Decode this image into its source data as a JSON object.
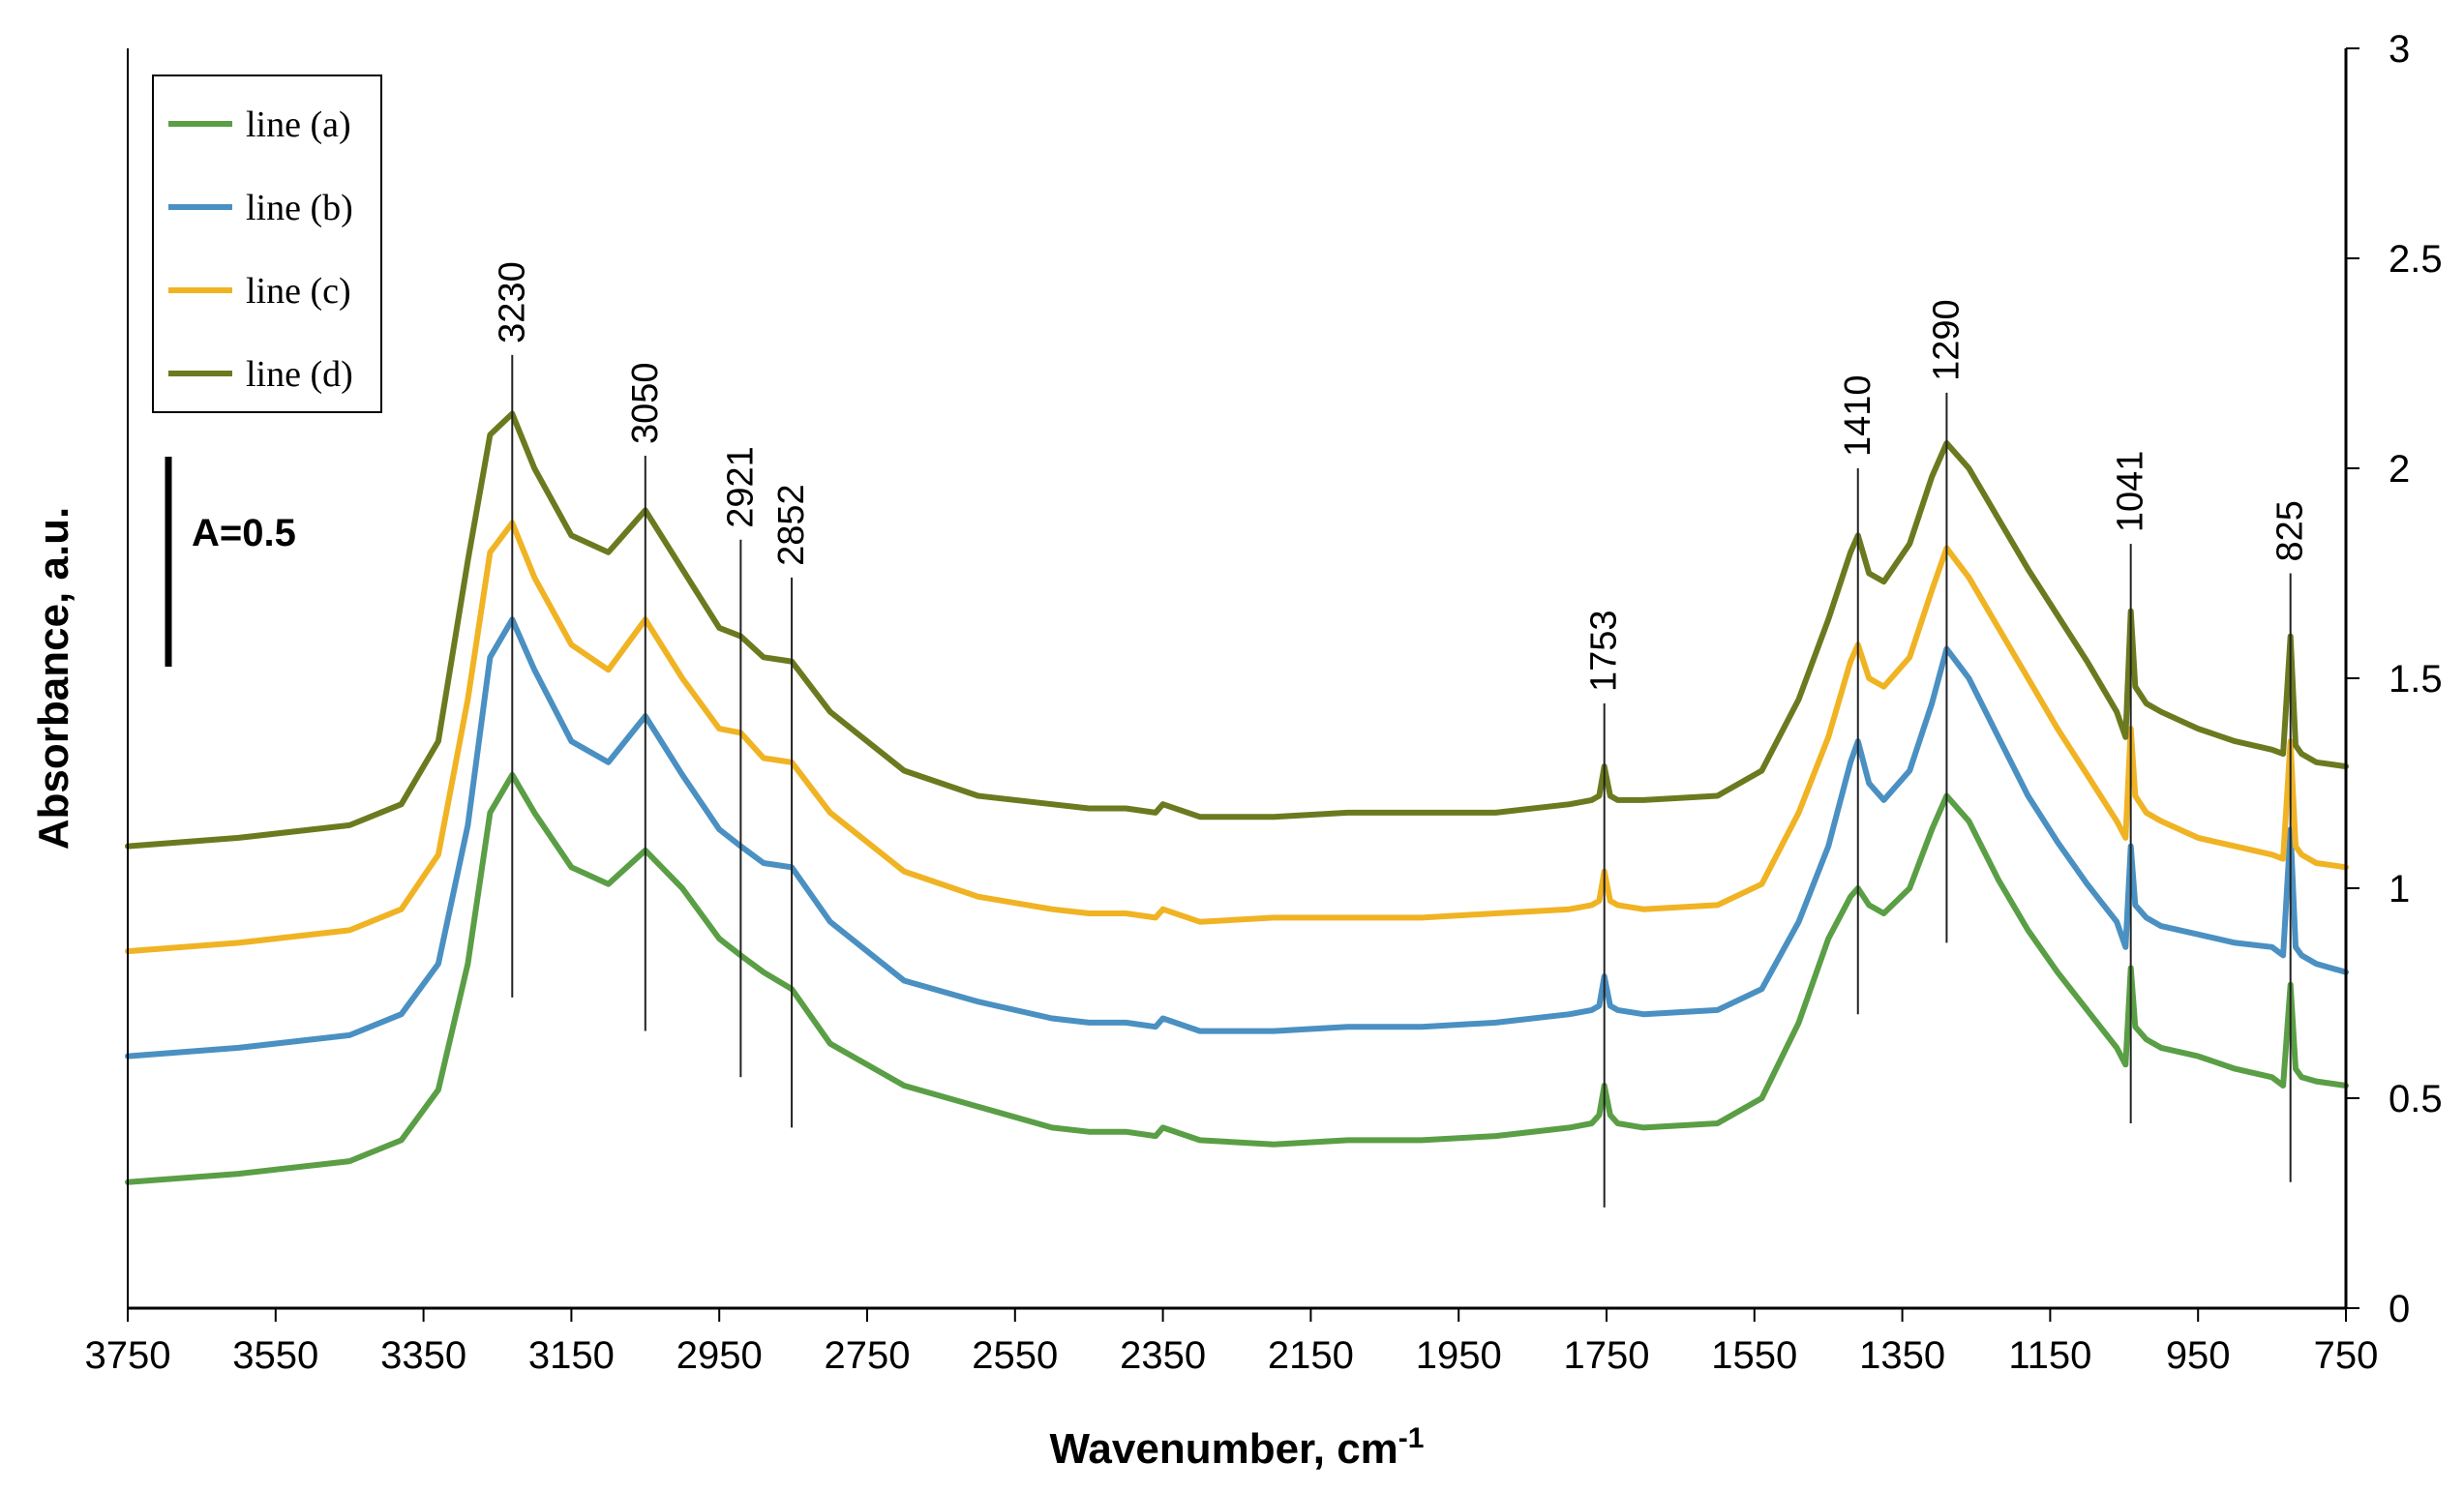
{
  "chart_data": {
    "type": "line",
    "title": "",
    "xlabel": "Wavenumber, cm",
    "xlabel_superscript": "-1",
    "ylabel": "Absorbance, a.u.",
    "xlim": [
      3750,
      750
    ],
    "ylim": [
      0,
      3
    ],
    "x_reversed": true,
    "x_ticks": [
      3750,
      3550,
      3350,
      3150,
      2950,
      2750,
      2550,
      2350,
      2150,
      1950,
      1750,
      1550,
      1350,
      1150,
      950,
      750
    ],
    "x_tick_labels": [
      "3750",
      "3550",
      "3350",
      "3150",
      "2950",
      "2750",
      "2550",
      "2350",
      "2150",
      "1950",
      "1750",
      "1550",
      "1350",
      "1150",
      "950",
      "750"
    ],
    "y_ticks": [
      0,
      0.5,
      1,
      1.5,
      2,
      2.5,
      3
    ],
    "y_tick_labels": [
      "0",
      "0.5",
      "1",
      "1.5",
      "2",
      "2.5",
      "3"
    ],
    "y_axis_side": "right",
    "grid": false,
    "legend_position": "top-left",
    "scale_bar": {
      "label": "A=0.5",
      "value": 0.5
    },
    "series": [
      {
        "name": "line (a)",
        "color": "#5a9e45",
        "x": [
          3750,
          3600,
          3450,
          3380,
          3330,
          3290,
          3260,
          3230,
          3200,
          3150,
          3100,
          3050,
          3000,
          2950,
          2921,
          2890,
          2852,
          2800,
          2700,
          2600,
          2500,
          2450,
          2400,
          2360,
          2350,
          2300,
          2200,
          2100,
          2000,
          1900,
          1800,
          1770,
          1760,
          1753,
          1745,
          1735,
          1700,
          1600,
          1540,
          1490,
          1450,
          1420,
          1410,
          1395,
          1375,
          1340,
          1310,
          1290,
          1260,
          1220,
          1180,
          1140,
          1100,
          1060,
          1048,
          1041,
          1035,
          1020,
          1000,
          950,
          900,
          850,
          835,
          825,
          818,
          810,
          790,
          750
        ],
        "y": [
          0.3,
          0.32,
          0.35,
          0.4,
          0.52,
          0.82,
          1.18,
          1.27,
          1.18,
          1.05,
          1.01,
          1.09,
          1.0,
          0.88,
          0.84,
          0.8,
          0.76,
          0.63,
          0.53,
          0.48,
          0.43,
          0.42,
          0.42,
          0.41,
          0.43,
          0.4,
          0.39,
          0.4,
          0.4,
          0.41,
          0.43,
          0.44,
          0.46,
          0.53,
          0.46,
          0.44,
          0.43,
          0.44,
          0.5,
          0.68,
          0.88,
          0.98,
          1.0,
          0.96,
          0.94,
          1.0,
          1.14,
          1.22,
          1.16,
          1.02,
          0.9,
          0.8,
          0.71,
          0.62,
          0.58,
          0.81,
          0.67,
          0.64,
          0.62,
          0.6,
          0.57,
          0.55,
          0.53,
          0.77,
          0.57,
          0.55,
          0.54,
          0.53
        ]
      },
      {
        "name": "line (b)",
        "color": "#4a90c2",
        "x": [
          3750,
          3600,
          3450,
          3380,
          3330,
          3290,
          3260,
          3230,
          3200,
          3150,
          3100,
          3050,
          3000,
          2950,
          2921,
          2890,
          2852,
          2800,
          2700,
          2600,
          2500,
          2450,
          2400,
          2360,
          2350,
          2300,
          2200,
          2100,
          2000,
          1900,
          1800,
          1770,
          1760,
          1753,
          1745,
          1735,
          1700,
          1600,
          1540,
          1490,
          1450,
          1420,
          1410,
          1395,
          1375,
          1340,
          1310,
          1290,
          1260,
          1220,
          1180,
          1140,
          1100,
          1060,
          1048,
          1041,
          1035,
          1020,
          1000,
          950,
          900,
          850,
          835,
          825,
          818,
          810,
          790,
          750
        ],
        "y": [
          0.6,
          0.62,
          0.65,
          0.7,
          0.82,
          1.15,
          1.55,
          1.64,
          1.52,
          1.35,
          1.3,
          1.41,
          1.27,
          1.14,
          1.1,
          1.06,
          1.05,
          0.92,
          0.78,
          0.73,
          0.69,
          0.68,
          0.68,
          0.67,
          0.69,
          0.66,
          0.66,
          0.67,
          0.67,
          0.68,
          0.7,
          0.71,
          0.72,
          0.79,
          0.72,
          0.71,
          0.7,
          0.71,
          0.76,
          0.92,
          1.1,
          1.3,
          1.35,
          1.25,
          1.21,
          1.28,
          1.44,
          1.57,
          1.5,
          1.36,
          1.22,
          1.11,
          1.01,
          0.92,
          0.86,
          1.1,
          0.96,
          0.93,
          0.91,
          0.89,
          0.87,
          0.86,
          0.84,
          1.14,
          0.86,
          0.84,
          0.82,
          0.8
        ]
      },
      {
        "name": "line (c)",
        "color": "#f0b323",
        "x": [
          3750,
          3600,
          3450,
          3380,
          3330,
          3290,
          3260,
          3230,
          3200,
          3150,
          3100,
          3050,
          3000,
          2950,
          2921,
          2890,
          2852,
          2800,
          2700,
          2600,
          2500,
          2450,
          2400,
          2360,
          2350,
          2300,
          2200,
          2100,
          2000,
          1900,
          1800,
          1770,
          1760,
          1753,
          1745,
          1735,
          1700,
          1600,
          1540,
          1490,
          1450,
          1420,
          1410,
          1395,
          1375,
          1340,
          1310,
          1290,
          1260,
          1220,
          1180,
          1140,
          1100,
          1060,
          1048,
          1041,
          1035,
          1020,
          1000,
          950,
          900,
          850,
          835,
          825,
          818,
          810,
          790,
          750
        ],
        "y": [
          0.85,
          0.87,
          0.9,
          0.95,
          1.08,
          1.45,
          1.8,
          1.87,
          1.74,
          1.58,
          1.52,
          1.64,
          1.5,
          1.38,
          1.37,
          1.31,
          1.3,
          1.18,
          1.04,
          0.98,
          0.95,
          0.94,
          0.94,
          0.93,
          0.95,
          0.92,
          0.93,
          0.93,
          0.93,
          0.94,
          0.95,
          0.96,
          0.97,
          1.04,
          0.97,
          0.96,
          0.95,
          0.96,
          1.01,
          1.18,
          1.36,
          1.54,
          1.58,
          1.5,
          1.48,
          1.55,
          1.71,
          1.81,
          1.74,
          1.62,
          1.5,
          1.38,
          1.27,
          1.16,
          1.12,
          1.38,
          1.22,
          1.18,
          1.16,
          1.12,
          1.1,
          1.08,
          1.07,
          1.35,
          1.1,
          1.08,
          1.06,
          1.05
        ]
      },
      {
        "name": "line (d)",
        "color": "#6b7a1f",
        "x": [
          3750,
          3600,
          3450,
          3380,
          3330,
          3290,
          3260,
          3230,
          3200,
          3150,
          3100,
          3050,
          3000,
          2950,
          2921,
          2890,
          2852,
          2800,
          2700,
          2600,
          2500,
          2450,
          2400,
          2360,
          2350,
          2300,
          2200,
          2100,
          2000,
          1900,
          1800,
          1770,
          1760,
          1753,
          1745,
          1735,
          1700,
          1600,
          1540,
          1490,
          1450,
          1420,
          1410,
          1395,
          1375,
          1340,
          1310,
          1290,
          1260,
          1220,
          1180,
          1140,
          1100,
          1060,
          1048,
          1041,
          1035,
          1020,
          1000,
          950,
          900,
          850,
          835,
          825,
          818,
          810,
          790,
          750
        ],
        "y": [
          1.1,
          1.12,
          1.15,
          1.2,
          1.35,
          1.78,
          2.08,
          2.13,
          2.0,
          1.84,
          1.8,
          1.9,
          1.76,
          1.62,
          1.6,
          1.55,
          1.54,
          1.42,
          1.28,
          1.22,
          1.2,
          1.19,
          1.19,
          1.18,
          1.2,
          1.17,
          1.17,
          1.18,
          1.18,
          1.18,
          1.2,
          1.21,
          1.22,
          1.29,
          1.22,
          1.21,
          1.21,
          1.22,
          1.28,
          1.45,
          1.64,
          1.8,
          1.84,
          1.75,
          1.73,
          1.82,
          1.98,
          2.06,
          2.0,
          1.88,
          1.76,
          1.65,
          1.54,
          1.42,
          1.36,
          1.66,
          1.48,
          1.44,
          1.42,
          1.38,
          1.35,
          1.33,
          1.32,
          1.6,
          1.34,
          1.32,
          1.3,
          1.29
        ]
      }
    ],
    "peak_markers": [
      {
        "label": "3230",
        "x": 3230,
        "y_top": 2.27,
        "y_bottom": 0.74
      },
      {
        "label": "3050",
        "x": 3050,
        "y_top": 2.03,
        "y_bottom": 0.66
      },
      {
        "label": "2921",
        "x": 2921,
        "y_top": 1.83,
        "y_bottom": 0.55
      },
      {
        "label": "2852",
        "x": 2852,
        "y_top": 1.74,
        "y_bottom": 0.43
      },
      {
        "label": "1753",
        "x": 1753,
        "y_top": 1.44,
        "y_bottom": 0.24
      },
      {
        "label": "1410",
        "x": 1410,
        "y_top": 2.0,
        "y_bottom": 0.7
      },
      {
        "label": "1290",
        "x": 1290,
        "y_top": 2.18,
        "y_bottom": 0.87
      },
      {
        "label": "1041",
        "x": 1041,
        "y_top": 1.82,
        "y_bottom": 0.44
      },
      {
        "label": "825",
        "x": 825,
        "y_top": 1.75,
        "y_bottom": 0.3
      }
    ]
  }
}
